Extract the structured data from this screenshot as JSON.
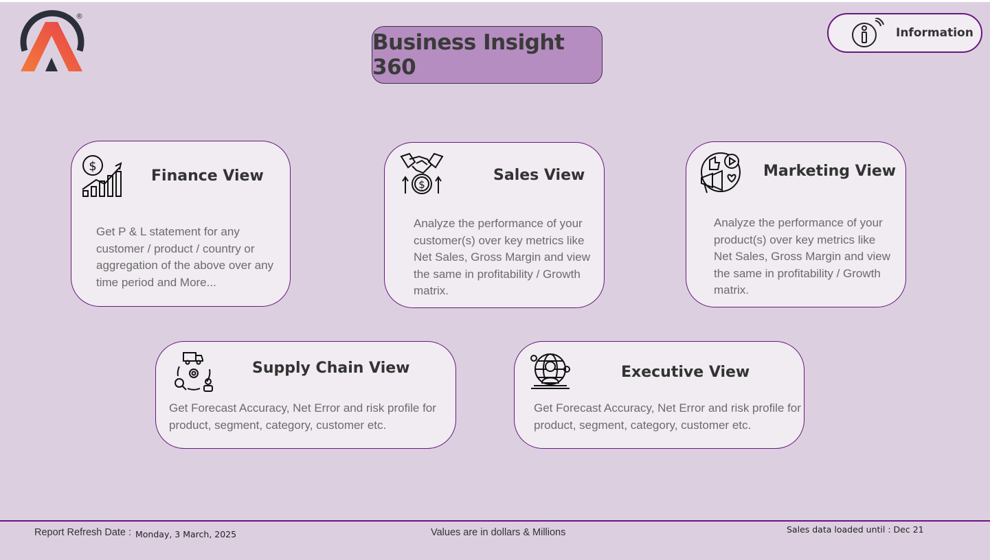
{
  "header": {
    "title": "Business Insight 360",
    "info_button_label": "Information",
    "logo_icon": "atliq-logo",
    "logo_mark": "®"
  },
  "cards": [
    {
      "title": "Finance View",
      "icon": "finance-chart-icon",
      "description": "Get P & L statement for any customer / product / country or aggregation of the above over any time period and More..."
    },
    {
      "title": "Sales View",
      "icon": "handshake-dollar-icon",
      "description": "Analyze the performance of your customer(s) over key metrics like Net Sales, Gross Margin and view the same in profitability / Growth matrix."
    },
    {
      "title": "Marketing View",
      "icon": "megaphone-social-icon",
      "description": "Analyze the performance of your product(s) over key metrics like Net Sales, Gross Margin and view the same in profitability / Growth matrix."
    },
    {
      "title": "Supply Chain View",
      "icon": "supply-chain-icon",
      "description": "Get Forecast Accuracy, Net Error and risk profile for product, segment, category, customer etc."
    },
    {
      "title": "Executive View",
      "icon": "executive-globe-icon",
      "description": "Get Forecast Accuracy, Net Error and risk profile for product, segment, category, customer etc."
    }
  ],
  "footer": {
    "refresh_label": "Report Refresh Date :",
    "refresh_value": "Monday, 3 March, 2025",
    "units_note": "Values are in dollars & Millions",
    "sales_loaded": "Sales data loaded until : Dec 21"
  },
  "colors": {
    "background": "#dcd0e0",
    "accent_purple": "#6a1580",
    "title_box": "#b58dc0",
    "card_bg": "#f0ecf1",
    "logo_orange": "#f26a35",
    "logo_dark": "#2b2f3a"
  }
}
